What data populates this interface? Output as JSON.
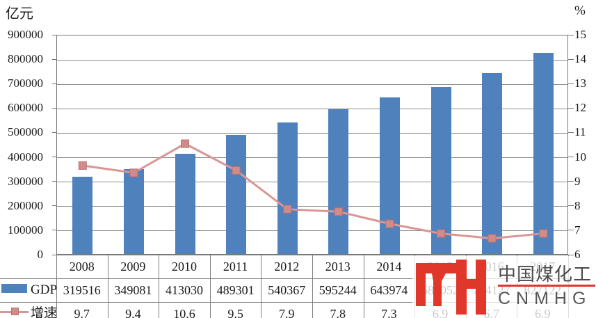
{
  "left_axis_unit": "亿元",
  "right_axis_unit": "%",
  "chart_data": {
    "type": "combo-bar-line",
    "categories": [
      "2008",
      "2009",
      "2010",
      "2011",
      "2012",
      "2013",
      "2014",
      "2015",
      "2016",
      "2017"
    ],
    "series": [
      {
        "name": "GDP",
        "type": "bar",
        "axis": "left",
        "color": "#4F81BD",
        "values": [
          319516,
          349081,
          413030,
          489301,
          540367,
          595244,
          643974,
          689052,
          744127,
          827122
        ]
      },
      {
        "name": "增速",
        "type": "line",
        "axis": "right",
        "color": "#D99694",
        "marker_color": "#D08C89",
        "marker_edge": "#C0706D",
        "values": [
          9.7,
          9.4,
          10.6,
          9.5,
          7.9,
          7.8,
          7.3,
          6.9,
          6.7,
          6.9
        ]
      }
    ],
    "left_axis": {
      "title": "亿元",
      "min": 0,
      "max": 900000,
      "step": 100000,
      "tick_labels": [
        "900000",
        "800000",
        "700000",
        "600000",
        "500000",
        "400000",
        "300000",
        "200000",
        "100000",
        "0"
      ]
    },
    "right_axis": {
      "title": "%",
      "min": 6,
      "max": 15,
      "step": 1,
      "tick_labels": [
        "15",
        "14",
        "13",
        "12",
        "11",
        "10",
        "9",
        "8",
        "7",
        "6"
      ]
    },
    "grid": true,
    "legend_position": "table-rows-left"
  },
  "table": {
    "year_row": [
      "2008",
      "2009",
      "2010",
      "2011",
      "2012",
      "2013",
      "2014",
      "2015",
      "2016",
      "2017"
    ],
    "rows": [
      {
        "label": "GDP",
        "cells": [
          "319516",
          "349081",
          "413030",
          "489301",
          "540367",
          "595244",
          "643974",
          "689052",
          "744127",
          "827122"
        ]
      },
      {
        "label": "增速",
        "cells": [
          "9.7",
          "9.4",
          "10.6",
          "9.5",
          "7.9",
          "7.8",
          "7.3",
          "6.9",
          "6.7",
          "6.9"
        ]
      }
    ]
  },
  "watermark": {
    "brand_cn": "中国煤化工",
    "brand_en": "CNMHG",
    "logo_color": "#E1362A",
    "underline_color": "#E1362A",
    "text_color": "#4A4A4A"
  }
}
